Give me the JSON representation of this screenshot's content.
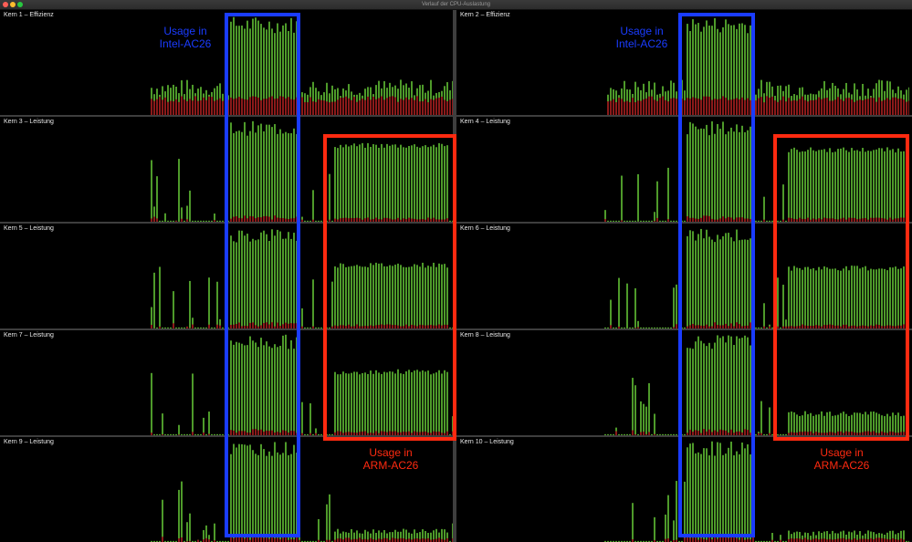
{
  "window": {
    "title": "Verlauf der CPU-Auslastung"
  },
  "panels": [
    {
      "label": "Kern 1 – Effizienz"
    },
    {
      "label": "Kern 2 – Effizienz"
    },
    {
      "label": "Kern 3 – Leistung"
    },
    {
      "label": "Kern 4 – Leistung"
    },
    {
      "label": "Kern 5 – Leistung"
    },
    {
      "label": "Kern 6 – Leistung"
    },
    {
      "label": "Kern 7 – Leistung"
    },
    {
      "label": "Kern 8 – Leistung"
    },
    {
      "label": "Kern 9 – Leistung"
    },
    {
      "label": "Kern 10 – Leistung"
    }
  ],
  "annotations": {
    "intel": {
      "line1": "Usage in",
      "line2": "Intel-AC26",
      "color": "#1a3cff"
    },
    "arm": {
      "line1": "Usage in",
      "line2": "ARM-AC26",
      "color": "#ff2a10"
    }
  },
  "colors": {
    "user": "#4e9a2a",
    "system": "#8b1a1a",
    "background": "#000000",
    "grid": "#3e3e3e"
  }
}
